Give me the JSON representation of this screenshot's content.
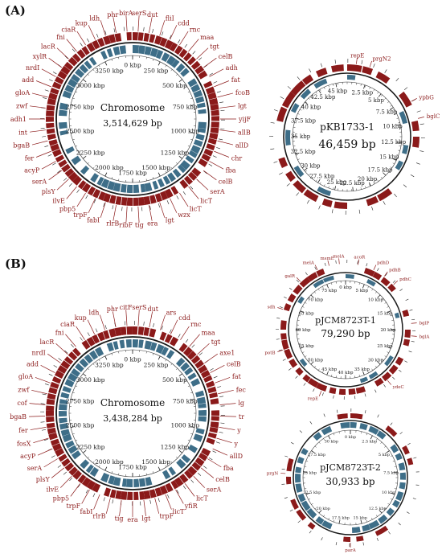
{
  "panels": [
    {
      "label": "(A)",
      "maps": [
        {
          "id": "a-chr",
          "title": "Chromosome",
          "size": "3,514,629 bp",
          "ticks": [
            "0 kbp",
            "250 kbp",
            "500 kbp",
            "750 kbp",
            "1000 kbp",
            "1250 kbp",
            "1500 kbp",
            "1750 kbp",
            "2000 kbp",
            "2250 kbp",
            "2500 kbp",
            "2750 kbp",
            "3000 kbp",
            "3250 kbp"
          ],
          "genes": [
            "serS",
            "dut",
            "fliI",
            "cdd",
            "rnc",
            "maa",
            "tgt",
            "celB",
            "adh",
            "fat",
            "fcoB",
            "lgt",
            "yijF",
            "allB",
            "allD",
            "chr",
            "fba",
            "celB",
            "serA",
            "licT",
            "licT",
            "wzx",
            "lgt",
            "era",
            "tig",
            "ribF",
            "rlrB",
            "fabI",
            "trpF",
            "pbp5",
            "ilvE",
            "plsY",
            "serA",
            "acyP",
            "fer",
            "bgaB",
            "int",
            "adh1",
            "zwf",
            "gloA",
            "add",
            "nrdI",
            "xylR",
            "lacR",
            "fni",
            "ciaR",
            "kup",
            "ldh",
            "phr",
            "birA"
          ]
        },
        {
          "id": "a-p1",
          "title": "pKB1733-1",
          "size": "46,459 bp",
          "ticks": [
            "2.5 kbp",
            "5 kbp",
            "7.5 kbp",
            "10 kbp",
            "12.5 kbp",
            "15 kbp",
            "17.5 kbp",
            "20 kbp",
            "22.5 kbp",
            "25 kbp",
            "27.5 kbp",
            "30 kbp",
            "32.5 kbp",
            "35 kbp",
            "37.5 kbp",
            "40 kbp",
            "42.5 kbp",
            "45 kbp"
          ],
          "genes": [
            "repE",
            "prgN2",
            "ypbG",
            "bglC"
          ]
        }
      ]
    },
    {
      "label": "(B)",
      "maps": [
        {
          "id": "b-chr",
          "title": "Chromosome",
          "size": "3,438,284 bp",
          "ticks": [
            "0 kbp",
            "250 kbp",
            "500 kbp",
            "750 kbp",
            "1000 kbp",
            "1250 kbp",
            "1500 kbp",
            "1750 kbp",
            "2000 kbp",
            "2250 kbp",
            "2500 kbp",
            "2750 kbp",
            "3000 kbp",
            "3250 kbp"
          ],
          "genes": [
            "serS",
            "dut",
            "ars",
            "cdd",
            "rnc",
            "maa",
            "tgt",
            "axe1",
            "celB",
            "fat",
            "fec",
            "lg",
            "tr",
            "y",
            "y",
            "allD",
            "fba",
            "celB",
            "serA",
            "licT",
            "yfiR",
            "licT",
            "trpF",
            "lgt",
            "era",
            "tig",
            "rlrB",
            "fabI",
            "trpF",
            "pbp5",
            "ilvE",
            "plsY",
            "serA",
            "acyP",
            "fosX",
            "fer",
            "bgaB",
            "cof",
            "zwf",
            "gloA",
            "add",
            "nrdI",
            "lacR",
            "fni",
            "ciaR",
            "kup",
            "ldh",
            "phr",
            "citF"
          ]
        },
        {
          "id": "b-p1",
          "title": "pJCM8723T-1",
          "size": "79,290 bp",
          "ticks": [
            "0 kbp",
            "5 kbp",
            "10 kbp",
            "15 kbp",
            "20 kbp",
            "25 kbp",
            "30 kbp",
            "35 kbp",
            "40 kbp",
            "45 kbp",
            "50 kbp",
            "55 kbp",
            "60 kbp",
            "65 kbp",
            "70 kbp",
            "75 kbp"
          ],
          "genes": [
            "acoR",
            "pdhD",
            "pdhB",
            "pdhC",
            "bglP",
            "bglA",
            "ydeC",
            "repE",
            "potB",
            "sdh",
            "galR",
            "melA",
            "msmE",
            "melA"
          ]
        },
        {
          "id": "b-p2",
          "title": "pJCM8723T-2",
          "size": "30,933 bp",
          "ticks": [
            "0 kbp",
            "2.5 kbp",
            "5 kbp",
            "7.5 kbp",
            "10 kbp",
            "12.5 kbp",
            "15 kbp",
            "17.5 kbp",
            "20 kbp",
            "22.5 kbp",
            "25 kbp",
            "27.5 kbp",
            "30 kbp"
          ],
          "genes": [
            "parA",
            "prgN"
          ]
        }
      ]
    }
  ],
  "colors": {
    "feature_red": "#8b1a1a",
    "feature_blue": "#3e6e88",
    "ring": "#1a1a1a",
    "label": "#8b1a1a"
  }
}
